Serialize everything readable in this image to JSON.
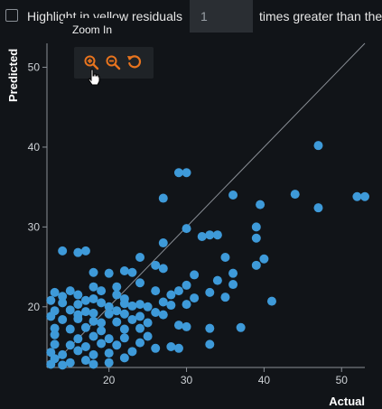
{
  "controls": {
    "highlight_label": "Highlight in yellow residuals",
    "factor_value": "1",
    "suffix_label": "times greater than the"
  },
  "tooltip": {
    "text": "Zoom In"
  },
  "modebar": {
    "icons": [
      "zoom-in-icon",
      "zoom-out-icon",
      "reset-icon"
    ],
    "accent": "#e8741e"
  },
  "colors": {
    "points": "#3e9ad9",
    "background": "#111418"
  },
  "chart_data": {
    "type": "scatter",
    "xlabel": "Actual",
    "ylabel": "Predicted",
    "xlim": [
      12,
      53
    ],
    "ylim": [
      12.4,
      53
    ],
    "xticks": [
      20,
      30,
      40,
      50
    ],
    "yticks": [
      20,
      30,
      40,
      50
    ],
    "reference_line": "y = x",
    "points": [
      [
        47,
        40.2
      ],
      [
        29,
        36.8
      ],
      [
        30,
        36.8
      ],
      [
        44,
        34.1
      ],
      [
        36,
        34.0
      ],
      [
        52,
        33.8
      ],
      [
        53,
        33.8
      ],
      [
        27,
        33.6
      ],
      [
        39.5,
        32.8
      ],
      [
        47,
        32.4
      ],
      [
        27,
        28.0
      ],
      [
        33,
        29.0
      ],
      [
        32,
        28.8
      ],
      [
        34,
        29.0
      ],
      [
        39,
        30.0
      ],
      [
        30,
        29.8
      ],
      [
        39,
        28.6
      ],
      [
        24,
        26.2
      ],
      [
        26,
        25.2
      ],
      [
        35,
        26.2
      ],
      [
        40,
        26.0
      ],
      [
        14,
        27.0
      ],
      [
        16,
        26.8
      ],
      [
        17,
        27.0
      ],
      [
        39,
        25.2
      ],
      [
        22,
        24.5
      ],
      [
        23,
        24.3
      ],
      [
        27,
        24.8
      ],
      [
        31,
        24.0
      ],
      [
        36,
        24.2
      ],
      [
        18,
        24.3
      ],
      [
        20,
        24.2
      ],
      [
        24,
        23.0
      ],
      [
        30,
        22.7
      ],
      [
        34,
        23.3
      ],
      [
        29,
        22.0
      ],
      [
        33,
        21.8
      ],
      [
        36,
        22.8
      ],
      [
        18,
        22.5
      ],
      [
        21,
        22.5
      ],
      [
        19,
        22.0
      ],
      [
        21,
        21.5
      ],
      [
        22,
        21.0
      ],
      [
        26,
        22.0
      ],
      [
        28,
        21.5
      ],
      [
        13,
        21.8
      ],
      [
        14,
        21.3
      ],
      [
        15,
        22.0
      ],
      [
        16,
        21.5
      ],
      [
        18,
        21.0
      ],
      [
        12.5,
        20.8
      ],
      [
        14,
        20.5
      ],
      [
        16,
        20.3
      ],
      [
        17,
        20.8
      ],
      [
        19,
        20.5
      ],
      [
        20,
        20.0
      ],
      [
        22,
        20.4
      ],
      [
        23,
        20.1
      ],
      [
        24,
        20.3
      ],
      [
        25,
        20.0
      ],
      [
        27,
        20.6
      ],
      [
        28,
        20.2
      ],
      [
        30,
        20.3
      ],
      [
        31,
        21.1
      ],
      [
        35,
        21.2
      ],
      [
        41,
        20.7
      ],
      [
        13,
        19.5
      ],
      [
        15,
        19.6
      ],
      [
        16,
        19.0
      ],
      [
        17,
        19.4
      ],
      [
        18,
        19.2
      ],
      [
        20,
        19.1
      ],
      [
        21,
        19.5
      ],
      [
        22,
        19.1
      ],
      [
        24,
        18.8
      ],
      [
        26,
        19.3
      ],
      [
        27,
        19.0
      ],
      [
        12.5,
        18.8
      ],
      [
        14,
        18.4
      ],
      [
        16,
        18.5
      ],
      [
        18,
        18.2
      ],
      [
        19,
        18.0
      ],
      [
        21,
        18.1
      ],
      [
        23,
        18.4
      ],
      [
        25,
        18.0
      ],
      [
        29,
        17.7
      ],
      [
        30,
        17.5
      ],
      [
        33,
        17.3
      ],
      [
        37,
        17.4
      ],
      [
        13,
        17.3
      ],
      [
        15,
        17.2
      ],
      [
        17,
        17.4
      ],
      [
        19,
        17.0
      ],
      [
        22,
        17.2
      ],
      [
        24,
        17.3
      ],
      [
        13,
        16.5
      ],
      [
        16,
        16.0
      ],
      [
        18,
        16.3
      ],
      [
        20,
        16.0
      ],
      [
        22,
        16.1
      ],
      [
        25,
        16.3
      ],
      [
        13,
        15.3
      ],
      [
        15,
        15.2
      ],
      [
        17,
        15.0
      ],
      [
        19,
        15.4
      ],
      [
        21,
        15.2
      ],
      [
        24,
        15.5
      ],
      [
        26,
        14.8
      ],
      [
        28,
        15.0
      ],
      [
        29,
        14.8
      ],
      [
        33,
        15.3
      ],
      [
        12.5,
        14.3
      ],
      [
        14,
        14.0
      ],
      [
        16,
        14.5
      ],
      [
        18,
        14.0
      ],
      [
        20,
        14.2
      ],
      [
        23,
        14.4
      ],
      [
        13,
        13.5
      ],
      [
        15,
        13.0
      ],
      [
        17,
        13.3
      ],
      [
        20,
        13.0
      ],
      [
        22,
        13.6
      ],
      [
        12.5,
        12.8
      ],
      [
        14,
        12.7
      ],
      [
        18,
        12.8
      ]
    ]
  }
}
